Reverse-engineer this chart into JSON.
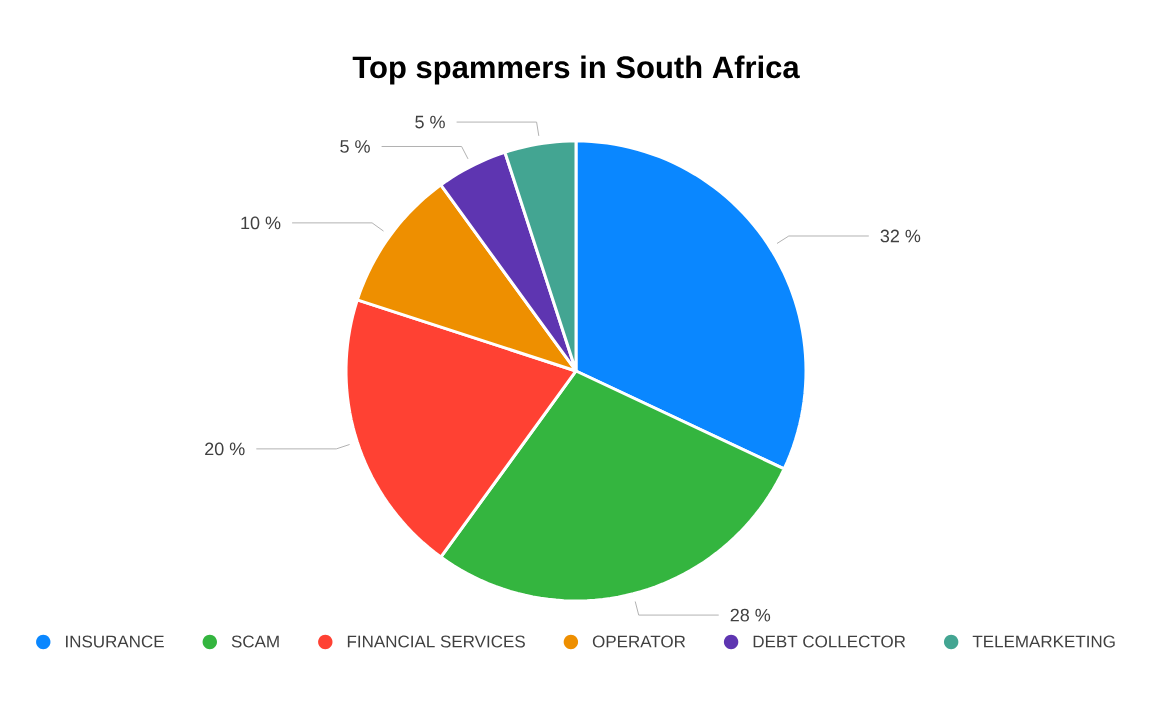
{
  "chart_data": {
    "type": "pie",
    "title": "Top spammers in South Africa",
    "categories": [
      "INSURANCE",
      "SCAM",
      "FINANCIAL SERVICES",
      "OPERATOR",
      "DEBT COLLECTOR",
      "TELEMARKETING"
    ],
    "values": [
      32,
      28,
      20,
      10,
      5,
      5
    ],
    "colors": [
      "#0a87ff",
      "#34b53f",
      "#ff4133",
      "#ee8f00",
      "#5e35b1",
      "#43a592"
    ],
    "value_labels": [
      "32 %",
      "28 %",
      "20 %",
      "10 %",
      "5 %",
      "5 %"
    ],
    "legend": "bottom"
  }
}
